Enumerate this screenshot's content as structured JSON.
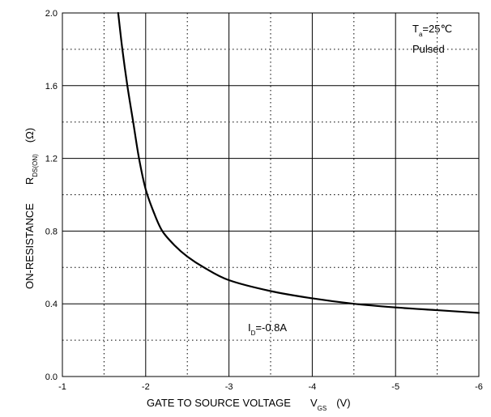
{
  "chart_data": {
    "type": "line",
    "xlabel": {
      "main": "GATE TO SOURCE VOLTAGE",
      "symbol": "V",
      "subscript": "GS",
      "unit": "(V)"
    },
    "ylabel": {
      "main": "ON-RESISTANCE",
      "symbol": "R",
      "subscript": "DS(ON)",
      "unit": "(Ω)"
    },
    "xlim": [
      -1,
      -6
    ],
    "ylim": [
      0.0,
      2.0
    ],
    "x_ticks": [
      -1,
      -2,
      -3,
      -4,
      -5,
      -6
    ],
    "x_tick_labels": [
      "-1",
      "-2",
      "-3",
      "-4",
      "-5",
      "-6"
    ],
    "y_ticks": [
      0.0,
      0.4,
      0.8,
      1.2,
      1.6,
      2.0
    ],
    "y_tick_labels": [
      "0.0",
      "0.4",
      "0.8",
      "1.2",
      "1.6",
      "2.0"
    ],
    "grid": {
      "major": "solid",
      "minor": "dotted"
    },
    "annotations": [
      {
        "id": "ta",
        "symbol": "T",
        "subscript": "a",
        "value": "=25℃"
      },
      {
        "id": "pulsed",
        "text": "Pulsed"
      },
      {
        "id": "id",
        "symbol": "I",
        "subscript": "D",
        "value": "=-0.8A"
      }
    ],
    "series": [
      {
        "x": [
          -1.67,
          -1.72,
          -1.78,
          -1.85,
          -1.92,
          -2.0,
          -2.1,
          -2.2,
          -2.35,
          -2.5,
          -2.7,
          -3.0,
          -3.5,
          -4.0,
          -4.5,
          -5.0,
          -5.5,
          -6.0
        ],
        "y": [
          2.0,
          1.8,
          1.6,
          1.4,
          1.2,
          1.03,
          0.9,
          0.8,
          0.72,
          0.66,
          0.6,
          0.53,
          0.47,
          0.43,
          0.4,
          0.38,
          0.365,
          0.35
        ]
      }
    ]
  }
}
